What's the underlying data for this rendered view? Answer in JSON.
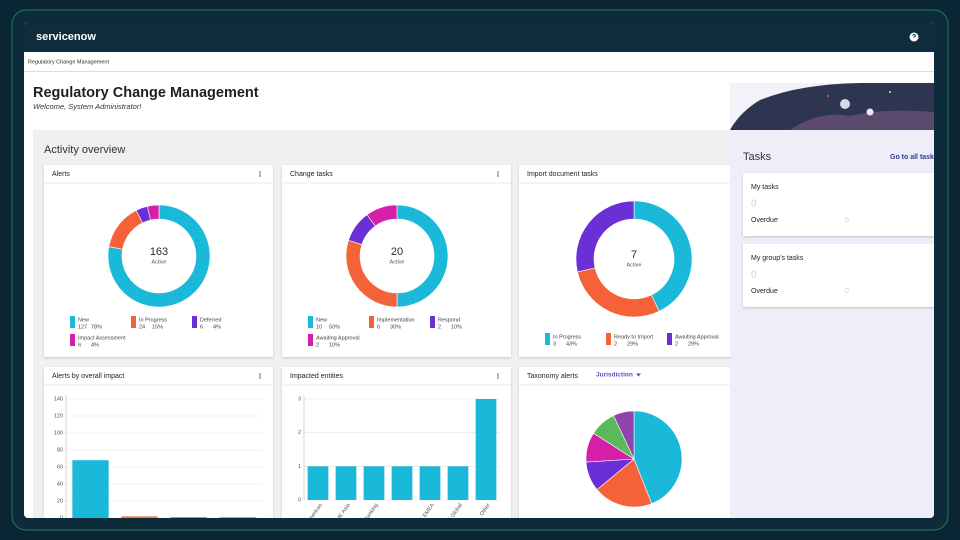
{
  "header": {
    "logo": "servicenow"
  },
  "breadcrumb": "Regulatory Change Management",
  "page": {
    "title": "Regulatory Change Management",
    "welcome": "Welcome, System Administrator!"
  },
  "activity": {
    "title": "Activity overview",
    "widgets": [
      {
        "type": "donut",
        "title": "Alerts",
        "total": 163,
        "total_label": "Active",
        "categories": [
          "New",
          "In Progress",
          "Deferred",
          "Impact Assessment"
        ],
        "values": [
          127,
          24,
          6,
          6
        ],
        "percent_labels": [
          "78%",
          "15%",
          "4%",
          "4%"
        ],
        "colors": [
          "#1ab8d9",
          "#f5623a",
          "#6a2fd6",
          "#d61fa8"
        ]
      },
      {
        "type": "donut",
        "title": "Change tasks",
        "total": 20,
        "total_label": "Active",
        "categories": [
          "New",
          "Implementation",
          "Respond",
          "Awaiting Approval"
        ],
        "values": [
          10,
          6,
          2,
          2
        ],
        "percent_labels": [
          "50%",
          "30%",
          "10%",
          "10%"
        ],
        "colors": [
          "#1ab8d9",
          "#f5623a",
          "#6a2fd6",
          "#d61fa8"
        ]
      },
      {
        "type": "donut",
        "title": "Import document tasks",
        "total": 7,
        "total_label": "Active",
        "categories": [
          "In Progress",
          "Ready to Import",
          "Awaiting Approval"
        ],
        "values": [
          3,
          2,
          2
        ],
        "percent_labels": [
          "43%",
          "29%",
          "29%"
        ],
        "colors": [
          "#1ab8d9",
          "#f5623a",
          "#6a2fd6"
        ]
      },
      {
        "type": "bar",
        "title": "Alerts by overall impact",
        "categories": [
          null,
          null,
          null,
          null
        ],
        "values": [
          68,
          2,
          1,
          1
        ],
        "colors": [
          "#1ab8d9",
          "#e8833a",
          "#4caf50",
          "#e8833a"
        ],
        "ylim": [
          0,
          140
        ],
        "yticks": [
          0,
          20,
          40,
          60,
          80,
          100,
          120,
          140
        ],
        "grid": true
      },
      {
        "type": "bar",
        "title": "Impacted entities",
        "categories": [
          "Americas",
          "CME Asia",
          "Banking",
          null,
          "E EMEA",
          "E Global",
          "Other"
        ],
        "values": [
          1,
          1,
          1,
          1,
          1,
          1,
          3
        ],
        "colors": [
          "#1ab8d9",
          "#1ab8d9",
          "#1ab8d9",
          "#1ab8d9",
          "#1ab8d9",
          "#1ab8d9",
          "#1ab8d9"
        ],
        "ylim": [
          0,
          3
        ],
        "yticks": [
          0,
          1,
          2,
          3
        ],
        "grid": true
      },
      {
        "type": "pie",
        "title": "Taxonomy alerts",
        "filter": "Jurisdiction",
        "values": [
          44,
          20,
          10,
          10,
          9,
          7
        ],
        "colors": [
          "#1ab8d9",
          "#f5623a",
          "#6a2fd6",
          "#d61fa8",
          "#5cb85c",
          "#8e44ad"
        ]
      }
    ]
  },
  "tasks": {
    "title": "Tasks",
    "link": "Go to all tasks",
    "cards": [
      {
        "title": "My tasks",
        "count": 0,
        "overdue_label": "Overdue",
        "overdue": 0
      },
      {
        "title": "My group's tasks",
        "count": 0,
        "overdue_label": "Overdue",
        "overdue": 0
      }
    ]
  }
}
